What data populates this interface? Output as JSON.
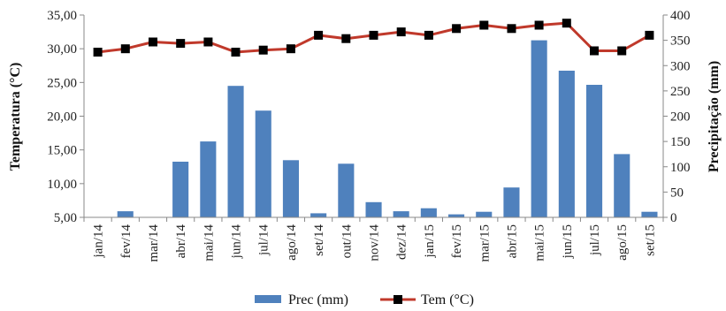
{
  "chart_data": {
    "type": "bar",
    "categories": [
      "jan/14",
      "fev/14",
      "mar/14",
      "abr/14",
      "mai/14",
      "jun/14",
      "jul/14",
      "ago/14",
      "set/14",
      "out/14",
      "nov/14",
      "dez/14",
      "jan/15",
      "fev/15",
      "mar/15",
      "abr/15",
      "mai/15",
      "jun/15",
      "jul/15",
      "ago/15",
      "set/15"
    ],
    "series": [
      {
        "name": "Prec (mm)",
        "type": "bar",
        "axis": "right",
        "color": "#4F81BD",
        "values": [
          0,
          12,
          0,
          110,
          150,
          260,
          211,
          113,
          8,
          106,
          30,
          12,
          18,
          6,
          11,
          59,
          350,
          290,
          262,
          125,
          11
        ]
      },
      {
        "name": "Tem (°C)",
        "type": "line",
        "axis": "left",
        "color": "#C0392B",
        "marker": "square",
        "marker_color": "#000000",
        "values": [
          29.5,
          30.0,
          31.0,
          30.8,
          31.0,
          29.5,
          29.8,
          30.0,
          32.0,
          31.5,
          32.0,
          32.5,
          32.0,
          33.0,
          33.5,
          33.0,
          33.5,
          33.8,
          29.7,
          29.7,
          32.0
        ]
      }
    ],
    "ylabel_left": "Temperatura (°C)",
    "ylabel_right": "Precipitação (mm)",
    "ylim_left": [
      5,
      35
    ],
    "yticks_left": [
      "5,00",
      "10,00",
      "15,00",
      "20,00",
      "25,00",
      "30,00",
      "35,00"
    ],
    "ylim_right": [
      0,
      400
    ],
    "yticks_right": [
      "0",
      "50",
      "100",
      "150",
      "200",
      "250",
      "300",
      "350",
      "400"
    ],
    "grid": false,
    "legend": {
      "placement": "bottom-center",
      "entries": [
        "Prec (mm)",
        "Tem (°C)"
      ]
    }
  }
}
